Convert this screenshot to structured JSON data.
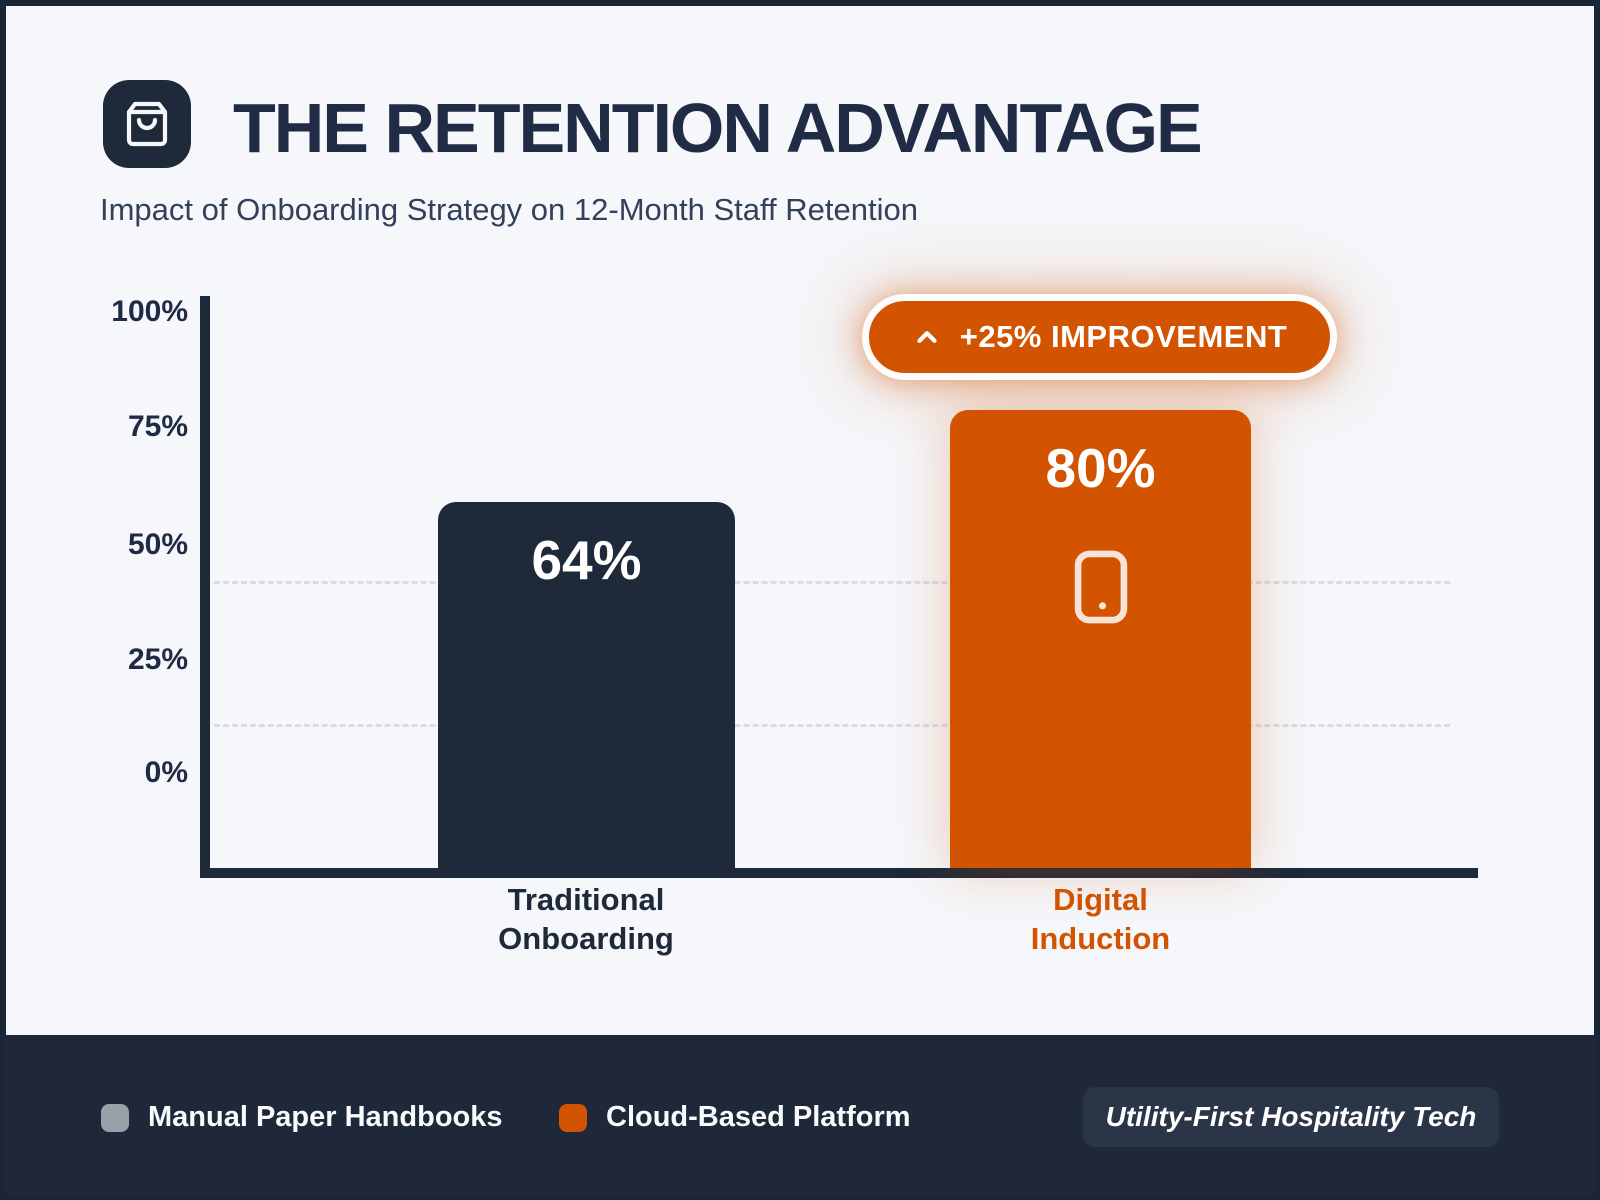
{
  "header": {
    "icon": "shopping-bag-icon",
    "title": "THE RETENTION ADVANTAGE",
    "subtitle": "Impact of Onboarding Strategy on 12-Month Staff Retention"
  },
  "chart_data": {
    "type": "bar",
    "title": "THE RETENTION ADVANTAGE",
    "subtitle": "Impact of Onboarding Strategy on 12-Month Staff Retention",
    "ylim": [
      0,
      100
    ],
    "grid": true,
    "y_ticks": [
      "100%",
      "75%",
      "50%",
      "25%",
      "0%"
    ],
    "categories": [
      "Traditional Onboarding",
      "Digital Induction"
    ],
    "values": [
      64,
      80
    ],
    "bars": [
      {
        "category_line1": "Traditional",
        "category_line2": "Onboarding",
        "value": 64,
        "value_label": "64%",
        "color": "#1E2939",
        "legend": "Manual Paper Handbooks"
      },
      {
        "category_line1": "Digital",
        "category_line2": "Induction",
        "value": 80,
        "value_label": "80%",
        "color": "#D35400",
        "icon": "smartphone-icon",
        "legend": "Cloud-Based Platform"
      }
    ],
    "annotation": {
      "icon": "chevron-up-icon",
      "text": "+25% IMPROVEMENT"
    }
  },
  "footer": {
    "legend": [
      {
        "swatch_color": "#99A0AA",
        "label": "Manual Paper Handbooks"
      },
      {
        "swatch_color": "#D35400",
        "label": "Cloud-Based Platform"
      }
    ],
    "brand": "Utility-First Hospitality Tech"
  },
  "colors": {
    "navy": "#1E2939",
    "orange": "#D35400",
    "background": "#F5F7FA",
    "gridline": "#D9DDE3",
    "legend_gray": "#99A0AA",
    "footer_bg": "#1E2838"
  }
}
